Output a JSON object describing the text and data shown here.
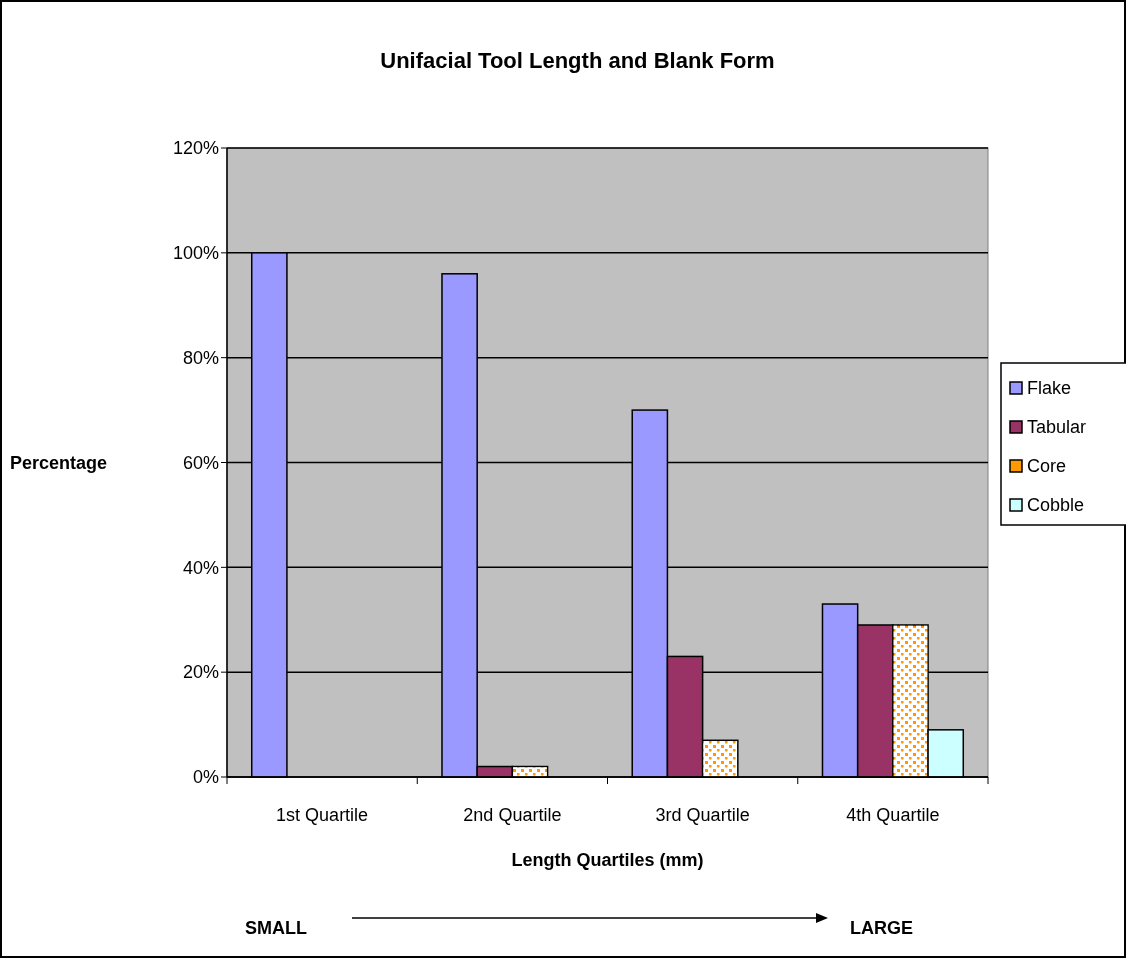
{
  "chart_data": {
    "type": "bar",
    "title": "Unifacial Tool Length and Blank Form",
    "xlabel": "Length Quartiles (mm)",
    "ylabel": "Percentage",
    "categories": [
      "1st Quartile",
      "2nd Quartile",
      "3rd Quartile",
      "4th Quartile"
    ],
    "series": [
      {
        "name": "Flake",
        "color": "#9999ff",
        "values": [
          100,
          96,
          70,
          33
        ]
      },
      {
        "name": "Tabular",
        "color": "#993366",
        "values": [
          0,
          2,
          23,
          29
        ]
      },
      {
        "name": "Core",
        "color": "#ff9900",
        "values": [
          0,
          2,
          7,
          29
        ]
      },
      {
        "name": "Cobble",
        "color": "#ccffff",
        "values": [
          0,
          0,
          0,
          9
        ]
      }
    ],
    "ylim": [
      0,
      120
    ],
    "yticks": [
      {
        "value": 0,
        "label": "0%"
      },
      {
        "value": 20,
        "label": "20%"
      },
      {
        "value": 40,
        "label": "40%"
      },
      {
        "value": 60,
        "label": "60%"
      },
      {
        "value": 80,
        "label": "80%"
      },
      {
        "value": 100,
        "label": "100%"
      },
      {
        "value": 120,
        "label": "120%"
      }
    ],
    "grid": "y",
    "legend": "right",
    "annotations": [
      "SMALL",
      "LARGE"
    ]
  }
}
